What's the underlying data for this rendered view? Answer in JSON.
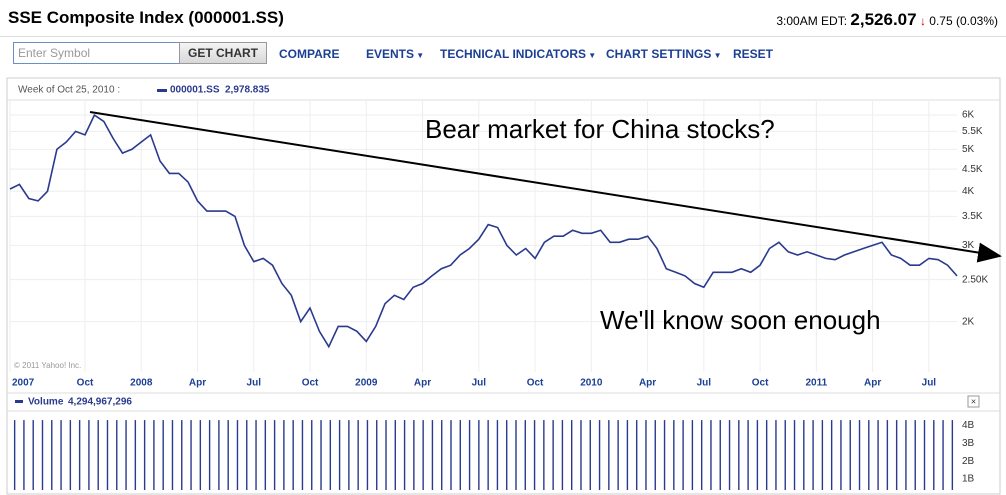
{
  "header": {
    "title": "SSE Composite Index (000001.SS)",
    "time": "3:00AM EDT:",
    "price": "2,526.07",
    "change": "0.75 (0.03%)"
  },
  "toolbar": {
    "placeholder": "Enter Symbol",
    "button": "GET CHART",
    "menu": [
      "COMPARE",
      "EVENTS",
      "TECHNICAL INDICATORS",
      "CHART SETTINGS",
      "RESET"
    ]
  },
  "watermark": "© 2011 Yahoo! Inc.",
  "chart_data": [
    {
      "type": "line",
      "hover_label": "Week of Oct 25, 2010 :",
      "hover_value_label": "2,978.835",
      "annotations": [
        "Bear market for China stocks?",
        "We'll know soon enough"
      ],
      "categories": [
        "2007",
        null,
        null,
        null,
        null,
        null,
        null,
        null,
        "Oct",
        null,
        null,
        null,
        null,
        null,
        "2008",
        null,
        null,
        null,
        null,
        null,
        "Apr",
        null,
        null,
        null,
        null,
        null,
        "Jul",
        null,
        null,
        null,
        null,
        null,
        "Oct",
        null,
        null,
        null,
        null,
        null,
        "2009",
        null,
        null,
        null,
        null,
        null,
        "Apr",
        null,
        null,
        null,
        null,
        null,
        "Jul",
        null,
        null,
        null,
        null,
        null,
        "Oct",
        null,
        null,
        null,
        null,
        null,
        "2010",
        null,
        null,
        null,
        null,
        null,
        "Apr",
        null,
        null,
        null,
        null,
        null,
        "Jul",
        null,
        null,
        null,
        null,
        null,
        "Oct",
        null,
        null,
        null,
        null,
        null,
        "2011",
        null,
        null,
        null,
        null,
        null,
        "Apr",
        null,
        null,
        null,
        null,
        null,
        "Jul",
        null,
        null,
        null
      ],
      "series": [
        {
          "name": "000001.SS",
          "color": "#2a3a8e",
          "values": [
            4050,
            4150,
            3850,
            3800,
            4000,
            5000,
            5200,
            5500,
            5400,
            6000,
            5800,
            5300,
            4900,
            5000,
            5200,
            5400,
            4700,
            4400,
            4400,
            4200,
            3800,
            3600,
            3600,
            3600,
            3500,
            3000,
            2750,
            2800,
            2700,
            2450,
            2300,
            2000,
            2150,
            1900,
            1750,
            1950,
            1950,
            1900,
            1800,
            1950,
            2200,
            2300,
            2250,
            2400,
            2450,
            2550,
            2650,
            2700,
            2850,
            2950,
            3100,
            3350,
            3300,
            3000,
            2850,
            2950,
            2800,
            3050,
            3150,
            3150,
            3250,
            3200,
            3200,
            3250,
            3050,
            3050,
            3100,
            3100,
            3150,
            2950,
            2650,
            2600,
            2550,
            2450,
            2400,
            2600,
            2600,
            2600,
            2650,
            2600,
            2700,
            2950,
            3050,
            2900,
            2850,
            2900,
            2850,
            2800,
            2780,
            2850,
            2900,
            2950,
            3000,
            3050,
            2850,
            2800,
            2700,
            2700,
            2800,
            2780,
            2700,
            2550
          ]
        }
      ],
      "log_scale": true,
      "grid": true,
      "ylim": [
        1530,
        6500
      ],
      "yticks": [
        {
          "value": 2000,
          "label": "2K"
        },
        {
          "value": 2500,
          "label": "2.50K"
        },
        {
          "value": 3000,
          "label": "3K"
        },
        {
          "value": 3500,
          "label": "3.5K"
        },
        {
          "value": 4000,
          "label": "4K"
        },
        {
          "value": 4500,
          "label": "4.5K"
        },
        {
          "value": 5000,
          "label": "5K"
        },
        {
          "value": 5500,
          "label": "5.5K"
        },
        {
          "value": 6000,
          "label": "6K"
        }
      ]
    },
    {
      "type": "bar",
      "name": "Volume",
      "hover_value_label": "4,294,967,296",
      "color": "#2a3a8e",
      "values": [
        4294967296,
        4294967296,
        4294967296,
        4294967296,
        4294967296,
        4294967296,
        4294967296,
        4294967296,
        4294967296,
        4294967296,
        4294967296,
        4294967296,
        4294967296,
        4294967296,
        4294967296,
        4294967296,
        4294967296,
        4294967296,
        4294967296,
        4294967296,
        4294967296,
        4294967296,
        4294967296,
        4294967296,
        4294967296,
        4294967296,
        4294967296,
        4294967296,
        4294967296,
        4294967296,
        4294967296,
        4294967296,
        4294967296,
        4294967296,
        4294967296,
        4294967296,
        4294967296,
        4294967296,
        4294967296,
        4294967296,
        4294967296,
        4294967296,
        4294967296,
        4294967296,
        4294967296,
        4294967296,
        4294967296,
        4294967296,
        4294967296,
        4294967296,
        4294967296,
        4294967296,
        4294967296,
        4294967296,
        4294967296,
        4294967296,
        4294967296,
        4294967296,
        4294967296,
        4294967296,
        4294967296,
        4294967296,
        4294967296,
        4294967296,
        4294967296,
        4294967296,
        4294967296,
        4294967296,
        4294967296,
        4294967296,
        4294967296,
        4294967296,
        4294967296,
        4294967296,
        4294967296,
        4294967296,
        4294967296,
        4294967296,
        4294967296,
        4294967296,
        4294967296,
        4294967296,
        4294967296,
        4294967296,
        4294967296,
        4294967296,
        4294967296,
        4294967296,
        4294967296,
        4294967296,
        4294967296,
        4294967296,
        4294967296,
        4294967296,
        4294967296,
        4294967296,
        4294967296,
        4294967296,
        4294967296,
        4294967296,
        4294967296,
        4294967296
      ],
      "ylim": [
        390000000,
        4300000000
      ],
      "yticks": [
        {
          "value": 1000000000,
          "label": "1B"
        },
        {
          "value": 2000000000,
          "label": "2B"
        },
        {
          "value": 3000000000,
          "label": "3B"
        },
        {
          "value": 4000000000,
          "label": "4B"
        }
      ]
    }
  ]
}
